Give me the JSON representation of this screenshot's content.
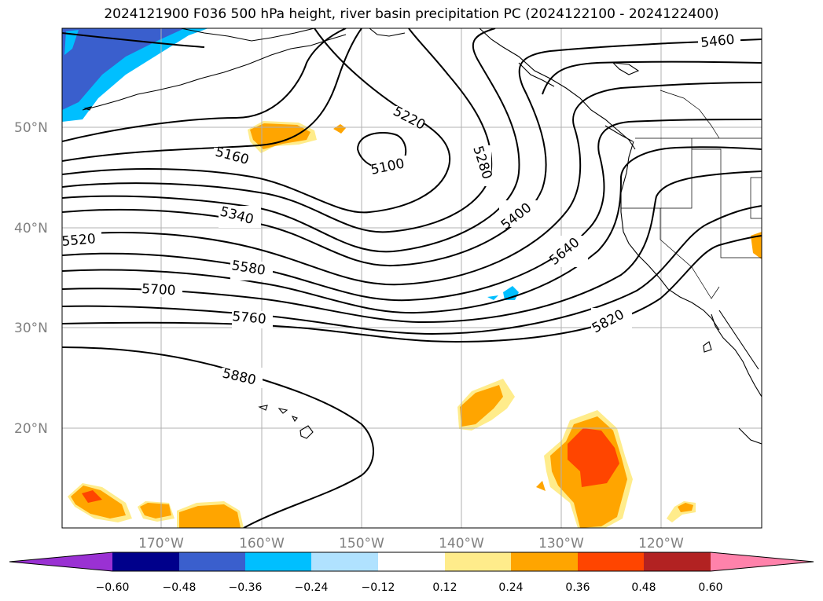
{
  "title": "2024121900 F036 500 hPa height, river basin precipitation PC (2024122100 - 2024122400)",
  "lat_labels": [
    "50°N",
    "40°N",
    "30°N",
    "20°N"
  ],
  "lon_labels": [
    "170°W",
    "160°W",
    "150°W",
    "140°W",
    "130°W",
    "120°W"
  ],
  "contour_labels": [
    "5460",
    "5220",
    "5160",
    "5100",
    "5280",
    "5400",
    "5340",
    "5520",
    "5640",
    "5580",
    "5700",
    "5760",
    "5820",
    "5880"
  ],
  "colorbar": {
    "ticks": [
      "−0.60",
      "−0.48",
      "−0.36",
      "−0.24",
      "−0.12",
      "0.12",
      "0.24",
      "0.36",
      "0.48",
      "0.60"
    ],
    "colors": [
      "#9a31d3",
      "#00008b",
      "#3a5fcd",
      "#00bfff",
      "#b0e2ff",
      "#ffffff",
      "#ffec8b",
      "#ffa500",
      "#ff4500",
      "#b22222",
      "#ff82ab"
    ]
  }
}
